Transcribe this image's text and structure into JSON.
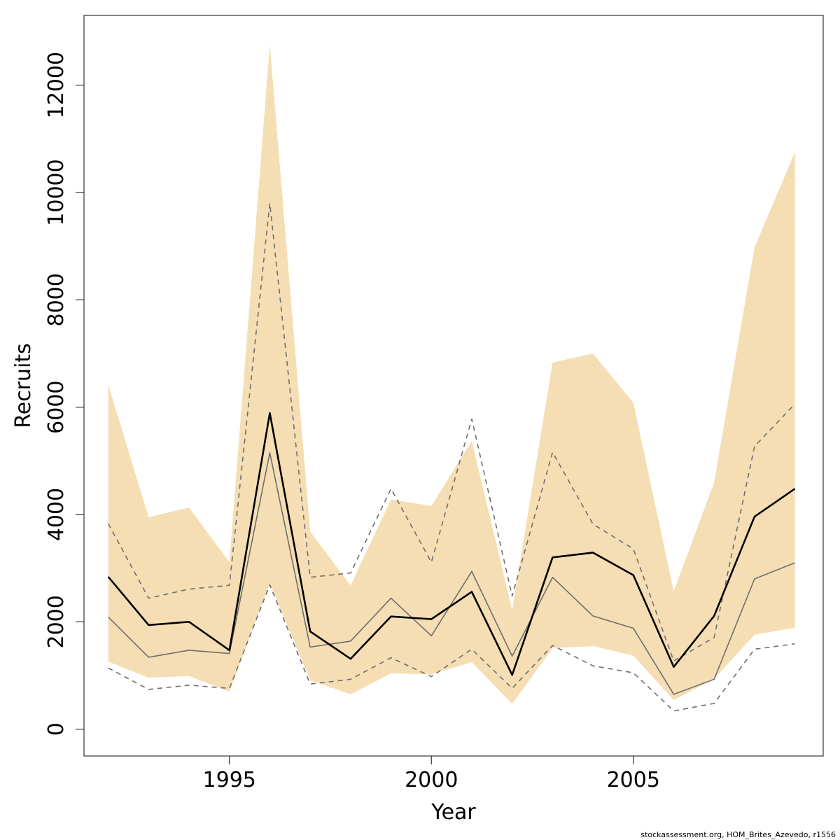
{
  "chart_data": {
    "type": "area",
    "title": "",
    "xlabel": "Year",
    "ylabel": "Recruits",
    "xlim": [
      1991.4,
      2009.7
    ],
    "ylim": [
      -500,
      13300
    ],
    "x_ticks": [
      1995,
      2000,
      2005
    ],
    "y_ticks": [
      0,
      2000,
      4000,
      6000,
      8000,
      10000,
      12000
    ],
    "x": [
      1992,
      1993,
      1994,
      1995,
      1996,
      1997,
      1998,
      1999,
      2000,
      2001,
      2002,
      2003,
      2004,
      2005,
      2006,
      2007,
      2008,
      2009
    ],
    "band_upper": [
      6420,
      3950,
      4130,
      3110,
      12750,
      3680,
      2680,
      4280,
      4160,
      5370,
      2220,
      6830,
      7000,
      6080,
      2570,
      4600,
      8980,
      10750
    ],
    "band_lower": [
      1260,
      960,
      990,
      700,
      2720,
      910,
      650,
      1040,
      1020,
      1250,
      470,
      1510,
      1550,
      1370,
      540,
      940,
      1760,
      1890
    ],
    "series": [
      {
        "values": [
          2840,
          1940,
          2000,
          1470,
          5890,
          1820,
          1310,
          2100,
          2050,
          2560,
          1010,
          3200,
          3290,
          2870,
          1160,
          2110,
          3960,
          4480
        ]
      },
      {
        "values": [
          2090,
          1340,
          1470,
          1410,
          5150,
          1530,
          1640,
          2440,
          1740,
          2940,
          1360,
          2830,
          2110,
          1880,
          650,
          930,
          2800,
          3100
        ]
      },
      {
        "values": [
          3830,
          2440,
          2610,
          2680,
          9800,
          2830,
          2910,
          4480,
          3110,
          5780,
          2480,
          5160,
          3820,
          3360,
          1270,
          1710,
          5270,
          6060
        ]
      },
      {
        "values": [
          1140,
          740,
          820,
          760,
          2690,
          840,
          930,
          1330,
          980,
          1490,
          760,
          1560,
          1180,
          1050,
          340,
          480,
          1490,
          1590
        ]
      }
    ],
    "colors": {
      "band": "#f5deb3",
      "main_line": "#000000",
      "thin_line": "#6e6e6e",
      "dashed_line": "#6e6e6e",
      "frame": "#333333"
    },
    "footer": "stockassessment.org, HOM_Brites_Azevedo, r1556"
  }
}
